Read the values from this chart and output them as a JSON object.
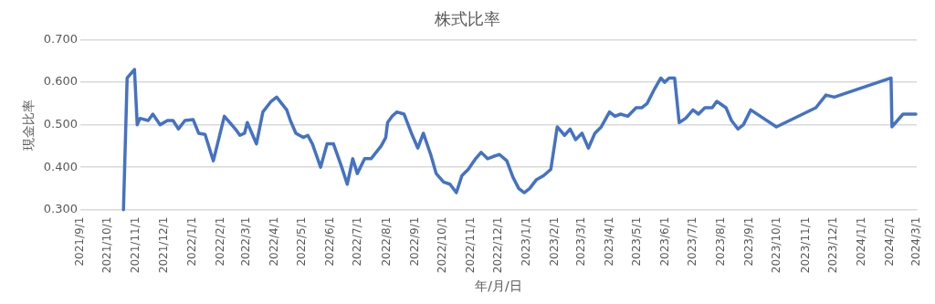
{
  "chart_data": {
    "type": "line",
    "title": "株式比率",
    "xlabel": "年/月/日",
    "ylabel": "現金比率",
    "x": [
      "2021-10-18",
      "2021-10-22",
      "2021-10-30",
      "2021-11-02",
      "2021-11-05",
      "2021-11-14",
      "2021-11-19",
      "2021-11-27",
      "2021-12-05",
      "2021-12-11",
      "2021-12-17",
      "2021-12-24",
      "2022-01-02",
      "2022-01-08",
      "2022-01-15",
      "2022-01-24",
      "2022-02-05",
      "2022-02-17",
      "2022-02-22",
      "2022-02-27",
      "2022-03-02",
      "2022-03-12",
      "2022-03-19",
      "2022-03-28",
      "2022-04-03",
      "2022-04-14",
      "2022-04-18",
      "2022-04-24",
      "2022-05-02",
      "2022-05-07",
      "2022-05-12",
      "2022-05-21",
      "2022-05-28",
      "2022-06-04",
      "2022-06-13",
      "2022-06-19",
      "2022-06-25",
      "2022-06-30",
      "2022-07-08",
      "2022-07-15",
      "2022-07-26",
      "2022-07-31",
      "2022-08-02",
      "2022-08-07",
      "2022-08-12",
      "2022-08-20",
      "2022-08-28",
      "2022-09-04",
      "2022-09-10",
      "2022-09-18",
      "2022-09-24",
      "2022-10-02",
      "2022-10-09",
      "2022-10-16",
      "2022-10-22",
      "2022-10-29",
      "2022-11-06",
      "2022-11-12",
      "2022-11-19",
      "2022-11-25",
      "2022-12-02",
      "2022-12-10",
      "2022-12-17",
      "2022-12-23",
      "2022-12-29",
      "2023-01-04",
      "2023-01-11",
      "2023-01-19",
      "2023-01-27",
      "2023-02-03",
      "2023-02-11",
      "2023-02-17",
      "2023-02-23",
      "2023-03-02",
      "2023-03-09",
      "2023-03-16",
      "2023-03-23",
      "2023-04-01",
      "2023-04-07",
      "2023-04-13",
      "2023-04-21",
      "2023-04-30",
      "2023-05-06",
      "2023-05-12",
      "2023-05-19",
      "2023-05-27",
      "2023-05-31",
      "2023-06-05",
      "2023-06-11",
      "2023-06-16",
      "2023-06-23",
      "2023-07-01",
      "2023-07-07",
      "2023-07-14",
      "2023-07-22",
      "2023-07-27",
      "2023-08-06",
      "2023-08-12",
      "2023-08-19",
      "2023-08-25",
      "2023-09-02",
      "2023-09-30",
      "2023-11-12",
      "2023-11-23",
      "2023-12-02",
      "2024-02-02",
      "2024-02-03",
      "2024-02-15",
      "2024-02-29"
    ],
    "series": [
      {
        "color": "#4472c4",
        "values": [
          0.3,
          0.61,
          0.63,
          0.5,
          0.515,
          0.51,
          0.525,
          0.5,
          0.51,
          0.51,
          0.49,
          0.51,
          0.512,
          0.48,
          0.477,
          0.415,
          0.52,
          0.49,
          0.475,
          0.48,
          0.505,
          0.455,
          0.53,
          0.555,
          0.565,
          0.535,
          0.51,
          0.48,
          0.47,
          0.475,
          0.455,
          0.4,
          0.455,
          0.455,
          0.4,
          0.36,
          0.42,
          0.385,
          0.42,
          0.42,
          0.45,
          0.47,
          0.505,
          0.52,
          0.53,
          0.525,
          0.48,
          0.445,
          0.48,
          0.43,
          0.385,
          0.365,
          0.36,
          0.34,
          0.38,
          0.395,
          0.42,
          0.435,
          0.42,
          0.425,
          0.43,
          0.415,
          0.375,
          0.35,
          0.34,
          0.35,
          0.37,
          0.38,
          0.395,
          0.495,
          0.475,
          0.49,
          0.465,
          0.48,
          0.445,
          0.48,
          0.495,
          0.53,
          0.52,
          0.525,
          0.52,
          0.54,
          0.54,
          0.55,
          0.58,
          0.61,
          0.6,
          0.61,
          0.61,
          0.505,
          0.515,
          0.535,
          0.525,
          0.54,
          0.54,
          0.555,
          0.54,
          0.51,
          0.49,
          0.5,
          0.535,
          0.495,
          0.54,
          0.57,
          0.565,
          0.61,
          0.495,
          0.525,
          0.525
        ]
      }
    ],
    "xlim": [
      "2021-09-01",
      "2024-03-01"
    ],
    "xticks": [
      {
        "value": "2021-09-01",
        "label": "2021/9/1"
      },
      {
        "value": "2021-10-01",
        "label": "2021/10/1"
      },
      {
        "value": "2021-11-01",
        "label": "2021/11/1"
      },
      {
        "value": "2021-12-01",
        "label": "2021/12/1"
      },
      {
        "value": "2022-01-01",
        "label": "2022/1/1"
      },
      {
        "value": "2022-02-01",
        "label": "2022/2/1"
      },
      {
        "value": "2022-03-01",
        "label": "2022/3/1"
      },
      {
        "value": "2022-04-01",
        "label": "2022/4/1"
      },
      {
        "value": "2022-05-01",
        "label": "2022/5/1"
      },
      {
        "value": "2022-06-01",
        "label": "2022/6/1"
      },
      {
        "value": "2022-07-01",
        "label": "2022/7/1"
      },
      {
        "value": "2022-08-01",
        "label": "2022/8/1"
      },
      {
        "value": "2022-09-01",
        "label": "2022/9/1"
      },
      {
        "value": "2022-10-01",
        "label": "2022/10/1"
      },
      {
        "value": "2022-11-01",
        "label": "2022/11/1"
      },
      {
        "value": "2022-12-01",
        "label": "2022/12/1"
      },
      {
        "value": "2023-01-01",
        "label": "2023/1/1"
      },
      {
        "value": "2023-02-01",
        "label": "2023/2/1"
      },
      {
        "value": "2023-03-01",
        "label": "2023/3/1"
      },
      {
        "value": "2023-04-01",
        "label": "2023/4/1"
      },
      {
        "value": "2023-05-01",
        "label": "2023/5/1"
      },
      {
        "value": "2023-06-01",
        "label": "2023/6/1"
      },
      {
        "value": "2023-07-01",
        "label": "2023/7/1"
      },
      {
        "value": "2023-08-01",
        "label": "2023/8/1"
      },
      {
        "value": "2023-09-01",
        "label": "2023/9/1"
      },
      {
        "value": "2023-10-01",
        "label": "2023/10/1"
      },
      {
        "value": "2023-11-01",
        "label": "2023/11/1"
      },
      {
        "value": "2023-12-01",
        "label": "2023/12/1"
      },
      {
        "value": "2024-01-01",
        "label": "2024/1/1"
      },
      {
        "value": "2024-02-01",
        "label": "2024/2/1"
      },
      {
        "value": "2024-03-01",
        "label": "2024/3/1"
      }
    ],
    "ylim": [
      0.3,
      0.7
    ],
    "yticks": [
      {
        "value": 0.3,
        "label": "0.300"
      },
      {
        "value": 0.4,
        "label": "0.400"
      },
      {
        "value": 0.5,
        "label": "0.500"
      },
      {
        "value": 0.6,
        "label": "0.600"
      },
      {
        "value": 0.7,
        "label": "0.700"
      }
    ],
    "grid": "y",
    "legend": false,
    "marker": "none",
    "line_style": "solid"
  }
}
